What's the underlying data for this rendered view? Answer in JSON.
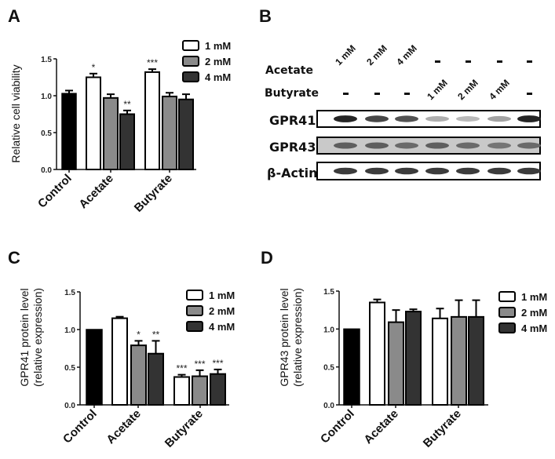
{
  "panels": {
    "A": "A",
    "B": "B",
    "C": "C",
    "D": "D"
  },
  "legend": [
    {
      "label": "1 mM",
      "color": "#ffffff"
    },
    {
      "label": "2 mM",
      "color": "#8a8a8a"
    },
    {
      "label": "4 mM",
      "color": "#333333"
    }
  ],
  "colors": {
    "control": "#000000",
    "1mM": "#ffffff",
    "2mM": "#8a8a8a",
    "4mM": "#333333"
  },
  "blot": {
    "row_labels": {
      "acetate": "Acetate",
      "butyrate": "Butyrate",
      "gpr41": "GPR41",
      "gpr43": "GPR43",
      "actin": "β-Actin"
    },
    "acetate": [
      "1 mM",
      "2 mM",
      "4 mM",
      "-",
      "-",
      "-",
      "-"
    ],
    "butyrate": [
      "-",
      "-",
      "-",
      "1 mM",
      "2 mM",
      "4 mM",
      "-"
    ],
    "gpr41_intensity": [
      0.95,
      0.8,
      0.75,
      0.35,
      0.3,
      0.4,
      0.95
    ],
    "gpr43_intensity": [
      0.7,
      0.7,
      0.65,
      0.7,
      0.65,
      0.6,
      0.65
    ],
    "actin_intensity": [
      0.85,
      0.85,
      0.85,
      0.85,
      0.85,
      0.85,
      0.85
    ]
  },
  "chart_data": [
    {
      "panel": "A",
      "type": "bar",
      "title": "",
      "xlabel": "",
      "ylabel": "Relative cell viability",
      "ylim": [
        0,
        1.5
      ],
      "yticks": [
        "0.0",
        "0.5",
        "1.0",
        "1.5"
      ],
      "categories": [
        "Control",
        "Acetate",
        "Butyrate"
      ],
      "control": {
        "value": 1.03,
        "error": 0.04
      },
      "series": [
        {
          "name": "1 mM",
          "values": [
            null,
            1.25,
            1.32
          ],
          "errors": [
            null,
            0.05,
            0.04
          ],
          "significance": [
            null,
            "*",
            "***"
          ]
        },
        {
          "name": "2 mM",
          "values": [
            null,
            0.97,
            0.99
          ],
          "errors": [
            null,
            0.05,
            0.05
          ],
          "significance": [
            null,
            "",
            ""
          ]
        },
        {
          "name": "4 mM",
          "values": [
            null,
            0.75,
            0.95
          ],
          "errors": [
            null,
            0.05,
            0.07
          ],
          "significance": [
            null,
            "**",
            ""
          ]
        }
      ],
      "legend_position": "top-right"
    },
    {
      "panel": "C",
      "type": "bar",
      "title": "",
      "xlabel": "",
      "ylabel": "GPR41 protein level (relative expression)",
      "ylabel_lines": [
        "GPR41 protein level",
        "(relative expression)"
      ],
      "ylim": [
        0,
        1.5
      ],
      "yticks": [
        "0.0",
        "0.5",
        "1.0",
        "1.5"
      ],
      "categories": [
        "Control",
        "Acetate",
        "Butyrate"
      ],
      "control": {
        "value": 1.0,
        "error": 0
      },
      "series": [
        {
          "name": "1 mM",
          "values": [
            null,
            1.15,
            0.37
          ],
          "errors": [
            null,
            0.02,
            0.03
          ],
          "significance": [
            null,
            "",
            "***"
          ]
        },
        {
          "name": "2 mM",
          "values": [
            null,
            0.79,
            0.38
          ],
          "errors": [
            null,
            0.06,
            0.08
          ],
          "significance": [
            null,
            "*",
            "***"
          ]
        },
        {
          "name": "4 mM",
          "values": [
            null,
            0.68,
            0.41
          ],
          "errors": [
            null,
            0.17,
            0.06
          ],
          "significance": [
            null,
            "**",
            "***"
          ]
        }
      ],
      "legend_position": "top-right"
    },
    {
      "panel": "D",
      "type": "bar",
      "title": "",
      "xlabel": "",
      "ylabel": "GPR43 protein level (relative expression)",
      "ylabel_lines": [
        "GPR43 protein level",
        "(relative expression)"
      ],
      "ylim": [
        0,
        1.5
      ],
      "yticks": [
        "0.0",
        "0.5",
        "1.0",
        "1.5"
      ],
      "categories": [
        "Control",
        "Acetate",
        "Butyrate"
      ],
      "control": {
        "value": 1.0,
        "error": 0
      },
      "series": [
        {
          "name": "1 mM",
          "values": [
            null,
            1.35,
            1.14
          ],
          "errors": [
            null,
            0.04,
            0.13
          ],
          "significance": [
            null,
            "",
            ""
          ]
        },
        {
          "name": "2 mM",
          "values": [
            null,
            1.09,
            1.16
          ],
          "errors": [
            null,
            0.16,
            0.22
          ],
          "significance": [
            null,
            "",
            ""
          ]
        },
        {
          "name": "4 mM",
          "values": [
            null,
            1.23,
            1.16
          ],
          "errors": [
            null,
            0.03,
            0.22
          ],
          "significance": [
            null,
            "",
            ""
          ]
        }
      ],
      "legend_position": "right"
    }
  ]
}
